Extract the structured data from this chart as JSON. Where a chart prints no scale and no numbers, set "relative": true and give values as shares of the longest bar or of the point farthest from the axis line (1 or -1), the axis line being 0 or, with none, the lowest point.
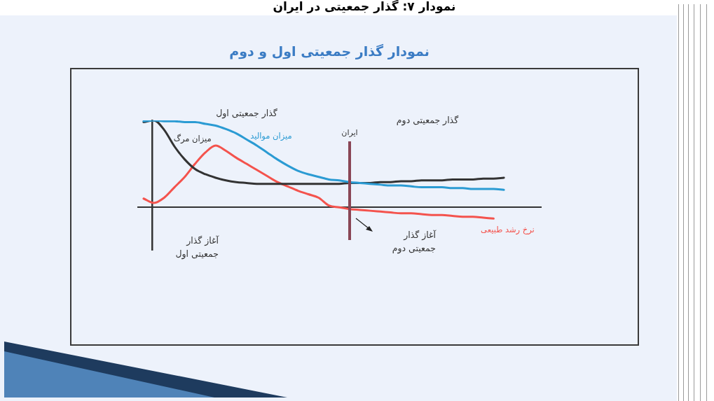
{
  "chart_data": {
    "type": "line",
    "title": "نمودار گذار جمعیتی اول و دوم",
    "relative": true,
    "categories": [
      null,
      null,
      null,
      null,
      null,
      null,
      null,
      null,
      null,
      null,
      null,
      null,
      null,
      null,
      null,
      null,
      null,
      null,
      null,
      null,
      null,
      null,
      null,
      null,
      null,
      null,
      null,
      null,
      null,
      null,
      null,
      null,
      null,
      null,
      null,
      null
    ],
    "series": [
      {
        "name": "میزان موالید",
        "color": "#2b9bd3",
        "values": [
          0.99,
          1.0,
          0.99,
          0.99,
          0.98,
          0.98,
          0.96,
          0.94,
          0.9,
          0.85,
          0.78,
          0.71,
          0.63,
          0.55,
          0.48,
          0.42,
          0.38,
          0.35,
          0.32,
          0.31,
          0.29,
          0.28,
          0.27,
          0.26,
          0.25,
          0.25,
          0.24,
          0.23,
          0.23,
          0.23,
          0.22,
          0.22,
          0.21,
          0.21,
          0.21,
          0.2
        ]
      },
      {
        "name": "میزان مرگ",
        "color": "#333333",
        "values": [
          0.98,
          1.0,
          0.89,
          0.7,
          0.55,
          0.44,
          0.38,
          0.34,
          0.31,
          0.29,
          0.28,
          0.27,
          0.27,
          0.27,
          0.27,
          0.27,
          0.27,
          0.27,
          0.27,
          0.27,
          0.28,
          0.28,
          0.28,
          0.29,
          0.29,
          0.3,
          0.3,
          0.31,
          0.31,
          0.31,
          0.32,
          0.32,
          0.32,
          0.33,
          0.33,
          0.34
        ]
      },
      {
        "name": "نرخ رشد طبیعی",
        "color": "#f4534d",
        "values": [
          0.1,
          0.05,
          0.11,
          0.23,
          0.35,
          0.5,
          0.63,
          0.71,
          0.65,
          0.57,
          0.5,
          0.43,
          0.36,
          0.29,
          0.24,
          0.19,
          0.15,
          0.11,
          0.02,
          0.0,
          -0.02,
          -0.03,
          -0.04,
          -0.05,
          -0.06,
          -0.07,
          -0.07,
          -0.08,
          -0.09,
          -0.09,
          -0.1,
          -0.11,
          -0.11,
          -0.12,
          -0.13,
          null
        ]
      }
    ],
    "annotations": [
      "نمودار ۷: گذار جمعیتی در ایران",
      "گذار جمعیتی اول",
      "گذار جمعیتی دوم",
      "آغاز گذار جمعیتی اول",
      "آغاز گذار جمعیتی دوم",
      "ایران"
    ]
  }
}
